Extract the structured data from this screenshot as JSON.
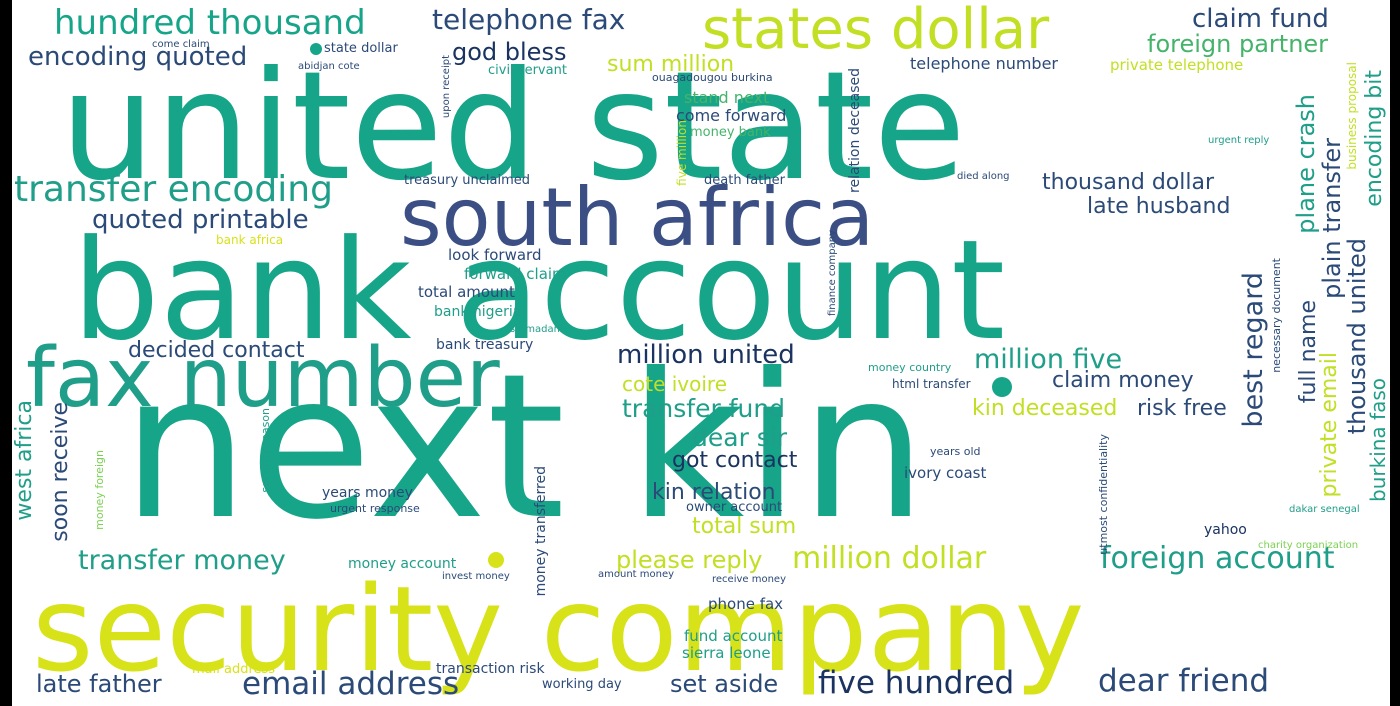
{
  "palette": {
    "teal": "#17a589",
    "teal2": "#1f9e89",
    "navy": "#3b4f85",
    "darkblue": "#2b4a78",
    "dark": "#1a3360",
    "green": "#45b36a",
    "lime": "#7ad151",
    "yellow": "#d8e219",
    "yellow2": "#c2df23",
    "cyan": "#2a9d9f"
  },
  "words": [
    {
      "text": "united state",
      "color": "teal"
    },
    {
      "text": "bank account",
      "color": "teal"
    },
    {
      "text": "next kin",
      "color": "teal"
    },
    {
      "text": "security company",
      "color": "yellow"
    },
    {
      "text": "south africa",
      "color": "navy"
    },
    {
      "text": "fax number",
      "color": "teal2"
    },
    {
      "text": "states dollar",
      "color": "yellow2"
    },
    {
      "text": "hundred thousand",
      "color": "teal"
    },
    {
      "text": "transfer encoding",
      "color": "teal2"
    },
    {
      "text": "telephone fax",
      "color": "darkblue"
    },
    {
      "text": "claim fund",
      "color": "darkblue"
    },
    {
      "text": "foreign partner",
      "color": "green"
    },
    {
      "text": "encoding quoted",
      "color": "darkblue"
    },
    {
      "text": "god bless",
      "color": "dark"
    },
    {
      "text": "sum million",
      "color": "yellow2"
    },
    {
      "text": "telephone number",
      "color": "darkblue"
    },
    {
      "text": "private telephone",
      "color": "yellow2"
    },
    {
      "text": "civil servant",
      "color": "teal2"
    },
    {
      "text": "stand next",
      "color": "green"
    },
    {
      "text": "come forward",
      "color": "darkblue"
    },
    {
      "text": "money bank",
      "color": "green"
    },
    {
      "text": "ouagadougou burkina",
      "color": "darkblue"
    },
    {
      "text": "state dollar",
      "color": "darkblue"
    },
    {
      "text": "come claim",
      "color": "darkblue"
    },
    {
      "text": "abidjan cote",
      "color": "darkblue"
    },
    {
      "text": "upon receipt",
      "color": "darkblue"
    },
    {
      "text": "quoted printable",
      "color": "darkblue"
    },
    {
      "text": "thousand dollar",
      "color": "darkblue"
    },
    {
      "text": "late husband",
      "color": "darkblue"
    },
    {
      "text": "treasury unclaimed",
      "color": "darkblue"
    },
    {
      "text": "death father",
      "color": "darkblue"
    },
    {
      "text": "died along",
      "color": "darkblue"
    },
    {
      "text": "urgent reply",
      "color": "teal2"
    },
    {
      "text": "bank africa",
      "color": "yellow"
    },
    {
      "text": "look forward",
      "color": "darkblue"
    },
    {
      "text": "forward claim",
      "color": "teal2"
    },
    {
      "text": "total amount",
      "color": "darkblue"
    },
    {
      "text": "bank nigeria",
      "color": "teal2"
    },
    {
      "text": "sir madam",
      "color": "teal2"
    },
    {
      "text": "bank treasury",
      "color": "darkblue"
    },
    {
      "text": "decided contact",
      "color": "darkblue"
    },
    {
      "text": "million united",
      "color": "dark"
    },
    {
      "text": "million five",
      "color": "teal2"
    },
    {
      "text": "claim money",
      "color": "darkblue"
    },
    {
      "text": "cote ivoire",
      "color": "yellow2"
    },
    {
      "text": "transfer fund",
      "color": "teal2"
    },
    {
      "text": "kin deceased",
      "color": "yellow2"
    },
    {
      "text": "risk free",
      "color": "darkblue"
    },
    {
      "text": "dear sir",
      "color": "teal2"
    },
    {
      "text": "got contact",
      "color": "dark"
    },
    {
      "text": "kin relation",
      "color": "darkblue"
    },
    {
      "text": "total sum",
      "color": "yellow2"
    },
    {
      "text": "money country",
      "color": "teal2"
    },
    {
      "text": "html transfer",
      "color": "darkblue"
    },
    {
      "text": "years old",
      "color": "darkblue"
    },
    {
      "text": "ivory coast",
      "color": "darkblue"
    },
    {
      "text": "years money",
      "color": "darkblue"
    },
    {
      "text": "urgent response",
      "color": "darkblue"
    },
    {
      "text": "owner account",
      "color": "darkblue"
    },
    {
      "text": "transfer money",
      "color": "teal2"
    },
    {
      "text": "please reply",
      "color": "yellow2"
    },
    {
      "text": "million dollar",
      "color": "yellow2"
    },
    {
      "text": "foreign account",
      "color": "teal2"
    },
    {
      "text": "money account",
      "color": "teal2"
    },
    {
      "text": "invest money",
      "color": "darkblue"
    },
    {
      "text": "amount money",
      "color": "darkblue"
    },
    {
      "text": "receive money",
      "color": "darkblue"
    },
    {
      "text": "phone fax",
      "color": "darkblue"
    },
    {
      "text": "fund account",
      "color": "teal2"
    },
    {
      "text": "sierra leone",
      "color": "teal2"
    },
    {
      "text": "mail address",
      "color": "yellow"
    },
    {
      "text": "transaction risk",
      "color": "darkblue"
    },
    {
      "text": "working day",
      "color": "darkblue"
    },
    {
      "text": "late father",
      "color": "darkblue"
    },
    {
      "text": "email address",
      "color": "darkblue"
    },
    {
      "text": "set aside",
      "color": "darkblue"
    },
    {
      "text": "five hundred",
      "color": "dark"
    },
    {
      "text": "dear friend",
      "color": "darkblue"
    },
    {
      "text": "yahoo",
      "color": "dark"
    },
    {
      "text": "dakar senegal",
      "color": "teal2"
    },
    {
      "text": "charity organization",
      "color": "lime"
    },
    {
      "text": "west africa",
      "color": "teal2"
    },
    {
      "text": "soon receive",
      "color": "darkblue"
    },
    {
      "text": "money foreign",
      "color": "lime"
    },
    {
      "text": "security reason",
      "color": "teal2"
    },
    {
      "text": "money transferred",
      "color": "darkblue"
    },
    {
      "text": "five million",
      "color": "yellow2"
    },
    {
      "text": "relation deceased",
      "color": "darkblue"
    },
    {
      "text": "finance company",
      "color": "darkblue"
    },
    {
      "text": "utmost confidentiality",
      "color": "darkblue"
    },
    {
      "text": "necessary document",
      "color": "darkblue"
    },
    {
      "text": "best regard",
      "color": "darkblue"
    },
    {
      "text": "full name",
      "color": "darkblue"
    },
    {
      "text": "plane crash",
      "color": "teal2"
    },
    {
      "text": "plain transfer",
      "color": "darkblue"
    },
    {
      "text": "private email",
      "color": "yellow2"
    },
    {
      "text": "thousand united",
      "color": "darkblue"
    },
    {
      "text": "encoding bit",
      "color": "teal2"
    },
    {
      "text": "business proposal",
      "color": "yellow2"
    },
    {
      "text": "burkina faso",
      "color": "teal2"
    }
  ]
}
